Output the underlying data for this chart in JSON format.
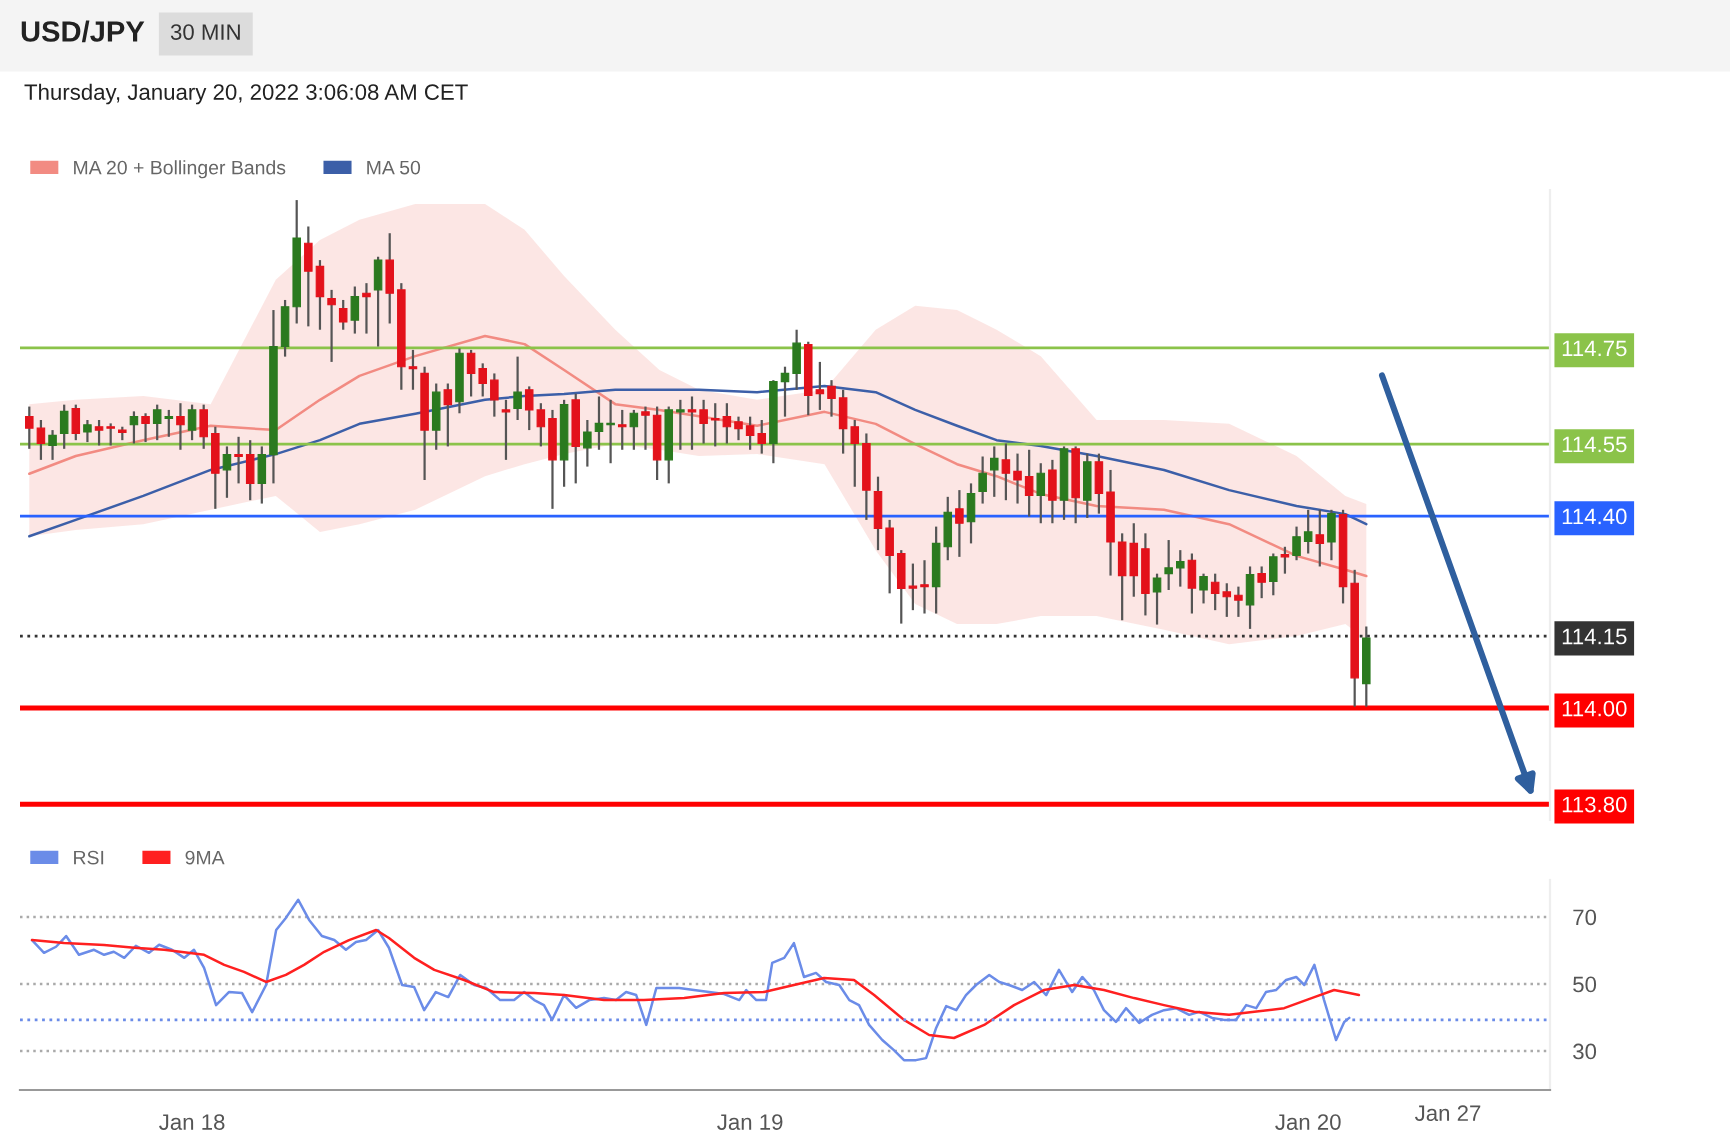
{
  "chart_data": [
    {
      "type": "candlestick",
      "title": "USD/JPY",
      "subtitle": "30 MIN",
      "annotations": [
        "Thursday, January 20, 2022 3:06:08 AM CET"
      ],
      "x": [
        "2022-01-17T17:00",
        "2022-01-17T17:30",
        "2022-01-17T18:00",
        "2022-01-17T18:30",
        "2022-01-17T19:00",
        "2022-01-17T19:30",
        "2022-01-17T20:00",
        "2022-01-17T20:30",
        "2022-01-17T21:00",
        "2022-01-17T21:30",
        "2022-01-17T22:00",
        "2022-01-17T22:30",
        "2022-01-17T23:00",
        "2022-01-17T23:30",
        "2022-01-18T00:00",
        "2022-01-18T00:30",
        "2022-01-18T01:00",
        "2022-01-18T01:30",
        "2022-01-18T02:00",
        "2022-01-18T02:30",
        "2022-01-18T03:00",
        "2022-01-18T03:30",
        "2022-01-18T04:00",
        "2022-01-18T04:30",
        "2022-01-18T05:00",
        "2022-01-18T05:30",
        "2022-01-18T06:00",
        "2022-01-18T06:30",
        "2022-01-18T07:00",
        "2022-01-18T07:30",
        "2022-01-18T08:00",
        "2022-01-18T08:30",
        "2022-01-18T09:00",
        "2022-01-18T09:30",
        "2022-01-18T10:00",
        "2022-01-18T10:30",
        "2022-01-18T11:00",
        "2022-01-18T11:30",
        "2022-01-18T12:00",
        "2022-01-18T12:30",
        "2022-01-18T13:00",
        "2022-01-18T13:30",
        "2022-01-18T14:00",
        "2022-01-18T14:30",
        "2022-01-18T15:00",
        "2022-01-18T15:30",
        "2022-01-18T16:00",
        "2022-01-18T16:30",
        "2022-01-18T17:00",
        "2022-01-18T17:30",
        "2022-01-18T18:00",
        "2022-01-18T18:30",
        "2022-01-18T19:00",
        "2022-01-18T19:30",
        "2022-01-18T20:00",
        "2022-01-18T20:30",
        "2022-01-18T21:00",
        "2022-01-18T21:30",
        "2022-01-18T22:00",
        "2022-01-18T22:30",
        "2022-01-18T23:00",
        "2022-01-18T23:30",
        "2022-01-19T00:00",
        "2022-01-19T00:30",
        "2022-01-19T01:00",
        "2022-01-19T01:30",
        "2022-01-19T02:00",
        "2022-01-19T02:30",
        "2022-01-19T03:00",
        "2022-01-19T03:30",
        "2022-01-19T04:00",
        "2022-01-19T04:30",
        "2022-01-19T05:00",
        "2022-01-19T05:30",
        "2022-01-19T06:00",
        "2022-01-19T06:30",
        "2022-01-19T07:00",
        "2022-01-19T07:30",
        "2022-01-19T08:00",
        "2022-01-19T08:30",
        "2022-01-19T09:00",
        "2022-01-19T09:30",
        "2022-01-19T10:00",
        "2022-01-19T10:30",
        "2022-01-19T11:00",
        "2022-01-19T11:30",
        "2022-01-19T12:00",
        "2022-01-19T12:30",
        "2022-01-19T13:00",
        "2022-01-19T13:30",
        "2022-01-19T14:00",
        "2022-01-19T14:30",
        "2022-01-19T15:00",
        "2022-01-19T15:30",
        "2022-01-19T16:00",
        "2022-01-19T16:30",
        "2022-01-19T17:00",
        "2022-01-19T17:30",
        "2022-01-19T18:00",
        "2022-01-19T18:30",
        "2022-01-19T19:00",
        "2022-01-19T19:30",
        "2022-01-19T20:00",
        "2022-01-19T20:30",
        "2022-01-19T21:00",
        "2022-01-19T21:30",
        "2022-01-19T22:00",
        "2022-01-19T22:30",
        "2022-01-19T23:00",
        "2022-01-19T23:30",
        "2022-01-20T00:00",
        "2022-01-20T00:30",
        "2022-01-20T01:00",
        "2022-01-20T01:30",
        "2022-01-20T02:00",
        "2022-01-20T02:30"
      ],
      "ohlc": [
        [
          114.607,
          114.628,
          114.54,
          114.583
        ],
        [
          114.583,
          114.6,
          114.517,
          114.551
        ],
        [
          114.547,
          114.579,
          114.517,
          114.568
        ],
        [
          114.572,
          114.632,
          114.54,
          114.618
        ],
        [
          114.624,
          114.632,
          114.558,
          114.572
        ],
        [
          114.575,
          114.6,
          114.554,
          114.59
        ],
        [
          114.586,
          114.6,
          114.547,
          114.579
        ],
        [
          114.586,
          114.593,
          114.547,
          114.583
        ],
        [
          114.579,
          114.586,
          114.558,
          114.574
        ],
        [
          114.59,
          114.618,
          114.551,
          114.607
        ],
        [
          114.607,
          114.614,
          114.554,
          114.593
        ],
        [
          114.593,
          114.632,
          114.558,
          114.621
        ],
        [
          114.603,
          114.621,
          114.565,
          114.607
        ],
        [
          114.607,
          114.635,
          114.538,
          114.59
        ],
        [
          114.579,
          114.632,
          114.558,
          114.621
        ],
        [
          114.621,
          114.632,
          114.54,
          114.565
        ],
        [
          114.572,
          114.586,
          114.415,
          114.489
        ],
        [
          114.496,
          114.545,
          114.438,
          114.528
        ],
        [
          114.528,
          114.565,
          114.468,
          114.524
        ],
        [
          114.528,
          114.558,
          114.433,
          114.468
        ],
        [
          114.468,
          114.545,
          114.426,
          114.528
        ],
        [
          114.528,
          114.829,
          114.468,
          114.753
        ],
        [
          114.753,
          114.85,
          114.732,
          114.836
        ],
        [
          114.836,
          115.058,
          114.801,
          114.979
        ],
        [
          114.968,
          115.003,
          114.795,
          114.91
        ],
        [
          114.92,
          114.933,
          114.788,
          114.857
        ],
        [
          114.853,
          114.871,
          114.721,
          114.84
        ],
        [
          114.832,
          114.85,
          114.788,
          114.804
        ],
        [
          114.808,
          114.878,
          114.78,
          114.857
        ],
        [
          114.864,
          114.885,
          114.78,
          114.857
        ],
        [
          114.871,
          114.94,
          114.753,
          114.933
        ],
        [
          114.933,
          114.989,
          114.801,
          114.864
        ],
        [
          114.871,
          114.885,
          114.663,
          114.711
        ],
        [
          114.711,
          114.746,
          114.663,
          114.707
        ],
        [
          114.697,
          114.711,
          114.475,
          114.579
        ],
        [
          114.579,
          114.676,
          114.538,
          114.658
        ],
        [
          114.663,
          114.676,
          114.545,
          114.632
        ],
        [
          114.638,
          114.749,
          114.614,
          114.739
        ],
        [
          114.739,
          114.746,
          114.649,
          114.697
        ],
        [
          114.707,
          114.718,
          114.649,
          114.676
        ],
        [
          114.683,
          114.697,
          114.607,
          114.642
        ],
        [
          114.621,
          114.642,
          114.517,
          114.617
        ],
        [
          114.624,
          114.732,
          114.6,
          114.658
        ],
        [
          114.663,
          114.67,
          114.579,
          114.621
        ],
        [
          114.621,
          114.635,
          114.545,
          114.586
        ],
        [
          114.603,
          114.621,
          114.415,
          114.517
        ],
        [
          114.517,
          114.642,
          114.461,
          114.632
        ],
        [
          114.642,
          114.655,
          114.468,
          114.545
        ],
        [
          114.542,
          114.6,
          114.503,
          114.575
        ],
        [
          114.576,
          114.649,
          114.538,
          114.593
        ],
        [
          114.59,
          114.642,
          114.51,
          114.593
        ],
        [
          114.59,
          114.621,
          114.538,
          114.586
        ],
        [
          114.586,
          114.621,
          114.538,
          114.614
        ],
        [
          114.617,
          114.628,
          114.538,
          114.61
        ],
        [
          114.61,
          114.628,
          114.475,
          114.517
        ],
        [
          114.517,
          114.628,
          114.468,
          114.621
        ],
        [
          114.617,
          114.642,
          114.538,
          114.621
        ],
        [
          114.621,
          114.649,
          114.538,
          114.617
        ],
        [
          114.621,
          114.642,
          114.551,
          114.593
        ],
        [
          114.603,
          114.635,
          114.545,
          114.6
        ],
        [
          114.607,
          114.635,
          114.551,
          114.586
        ],
        [
          114.596,
          114.607,
          114.558,
          114.582
        ],
        [
          114.588,
          114.607,
          114.538,
          114.568
        ],
        [
          114.572,
          114.6,
          114.53,
          114.551
        ],
        [
          114.551,
          114.683,
          114.51,
          114.68
        ],
        [
          114.68,
          114.711,
          114.607,
          114.697
        ],
        [
          114.697,
          114.788,
          114.663,
          114.76
        ],
        [
          114.757,
          114.763,
          114.61,
          114.651
        ],
        [
          114.663,
          114.721,
          114.621,
          114.655
        ],
        [
          114.67,
          114.683,
          114.607,
          114.645
        ],
        [
          114.646,
          114.663,
          114.53,
          114.582
        ],
        [
          114.586,
          114.6,
          114.461,
          114.551
        ],
        [
          114.551,
          114.572,
          114.392,
          114.454
        ],
        [
          114.451,
          114.482,
          114.329,
          114.374
        ],
        [
          114.375,
          114.392,
          114.239,
          114.318
        ],
        [
          114.322,
          114.329,
          114.176,
          114.249
        ],
        [
          114.254,
          114.301,
          114.204,
          114.25
        ],
        [
          114.257,
          114.308,
          114.197,
          114.253
        ],
        [
          114.253,
          114.378,
          114.197,
          114.343
        ],
        [
          114.336,
          114.44,
          114.308,
          114.408
        ],
        [
          114.415,
          114.454,
          114.315,
          114.385
        ],
        [
          114.388,
          114.468,
          114.343,
          114.447
        ],
        [
          114.451,
          114.524,
          114.426,
          114.489
        ],
        [
          114.496,
          114.545,
          114.44,
          114.52
        ],
        [
          114.517,
          114.551,
          114.433,
          114.489
        ],
        [
          114.493,
          114.53,
          114.426,
          114.475
        ],
        [
          114.482,
          114.538,
          114.399,
          114.443
        ],
        [
          114.443,
          114.51,
          114.385,
          114.489
        ],
        [
          114.496,
          114.517,
          114.385,
          114.433
        ],
        [
          114.433,
          114.545,
          114.392,
          114.54
        ],
        [
          114.54,
          114.545,
          114.385,
          114.438
        ],
        [
          114.433,
          114.53,
          114.396,
          114.513
        ],
        [
          114.513,
          114.53,
          114.405,
          114.447
        ],
        [
          114.45,
          114.496,
          114.276,
          114.346
        ],
        [
          114.346,
          114.364,
          114.183,
          114.276
        ],
        [
          114.343,
          114.385,
          114.232,
          114.276
        ],
        [
          114.332,
          114.364,
          114.193,
          114.239
        ],
        [
          114.242,
          114.28,
          114.174,
          114.271
        ],
        [
          114.28,
          114.35,
          114.246,
          114.292
        ],
        [
          114.292,
          114.329,
          114.253,
          114.305
        ],
        [
          114.308,
          114.322,
          114.197,
          114.25
        ],
        [
          114.246,
          114.28,
          114.218,
          114.274
        ],
        [
          114.262,
          114.28,
          114.204,
          114.239
        ],
        [
          114.242,
          114.26,
          114.19,
          114.232
        ],
        [
          114.235,
          114.253,
          114.19,
          114.225
        ],
        [
          114.215,
          114.295,
          114.165,
          114.278
        ],
        [
          114.28,
          114.295,
          114.229,
          114.262
        ],
        [
          114.264,
          114.322,
          114.235,
          114.315
        ],
        [
          114.32,
          114.336,
          114.28,
          114.315
        ],
        [
          114.318,
          114.378,
          114.308,
          114.357
        ],
        [
          114.347,
          114.413,
          114.322,
          114.367
        ],
        [
          114.361,
          114.413,
          114.295,
          114.343
        ],
        [
          114.346,
          114.413,
          114.308,
          114.405
        ],
        [
          114.403,
          114.413,
          114.218,
          114.253
        ],
        [
          114.26,
          114.288,
          114.003,
          114.063
        ],
        [
          114.051,
          114.17,
          114.003,
          114.146
        ]
      ],
      "series": [
        {
          "name": "MA 20 + Bollinger Bands",
          "type": "line",
          "color": "#f28b82",
          "x": [
            "2022-01-17T17:00",
            "2022-01-17T19:00",
            "2022-01-17T21:54",
            "2022-01-18T00:48",
            "2022-01-18T03:36",
            "2022-01-18T05:30",
            "2022-01-18T07:12",
            "2022-01-18T09:36",
            "2022-01-18T12:36",
            "2022-01-18T14:18",
            "2022-01-18T16:00",
            "2022-01-18T18:12",
            "2022-01-18T20:06",
            "2022-01-18T21:48",
            "2022-01-19T00:18",
            "2022-01-19T03:12",
            "2022-01-19T05:24",
            "2022-01-19T07:06",
            "2022-01-19T08:54",
            "2022-01-19T10:36",
            "2022-01-19T12:30",
            "2022-01-19T14:54",
            "2022-01-19T17:48",
            "2022-01-19T20:36",
            "2022-01-19T23:30",
            "2022-01-20T01:36",
            "2022-01-20T02:30"
          ],
          "values": [
            114.488,
            114.525,
            114.558,
            114.588,
            114.579,
            114.642,
            114.692,
            114.733,
            114.775,
            114.758,
            114.704,
            114.633,
            114.621,
            114.608,
            114.588,
            114.617,
            114.592,
            114.55,
            114.508,
            114.483,
            114.446,
            114.421,
            114.413,
            114.383,
            114.317,
            114.288,
            114.275
          ],
          "lower": [
            114.358,
            114.371,
            114.383,
            114.413,
            114.442,
            114.367,
            114.383,
            114.413,
            114.483,
            114.508,
            114.529,
            114.55,
            114.538,
            114.525,
            114.529,
            114.508,
            114.329,
            114.217,
            114.175,
            114.175,
            114.192,
            114.192,
            114.163,
            114.133,
            114.15,
            114.175,
            114.142
          ],
          "upper": [
            114.633,
            114.642,
            114.65,
            114.633,
            114.892,
            114.975,
            115.017,
            115.05,
            115.05,
            114.996,
            114.9,
            114.788,
            114.704,
            114.663,
            114.642,
            114.663,
            114.788,
            114.838,
            114.829,
            114.788,
            114.733,
            114.6,
            114.6,
            114.592,
            114.525,
            114.442,
            114.425
          ]
        },
        {
          "name": "MA 50",
          "type": "line",
          "color": "#3c5fa8",
          "x": [
            "2022-01-17T17:00",
            "2022-01-17T19:00",
            "2022-01-17T21:54",
            "2022-01-18T00:48",
            "2022-01-18T03:36",
            "2022-01-18T05:30",
            "2022-01-18T07:12",
            "2022-01-18T09:36",
            "2022-01-18T12:36",
            "2022-01-18T14:18",
            "2022-01-18T16:00",
            "2022-01-18T18:12",
            "2022-01-18T20:06",
            "2022-01-18T21:48",
            "2022-01-19T00:18",
            "2022-01-19T03:12",
            "2022-01-19T05:24",
            "2022-01-19T07:06",
            "2022-01-19T08:54",
            "2022-01-19T10:36",
            "2022-01-19T12:30",
            "2022-01-19T14:54",
            "2022-01-19T17:48",
            "2022-01-19T20:36",
            "2022-01-19T23:30",
            "2022-01-20T01:36",
            "2022-01-20T02:30"
          ],
          "values": [
            114.358,
            114.392,
            114.442,
            114.496,
            114.529,
            114.558,
            114.592,
            114.613,
            114.642,
            114.65,
            114.654,
            114.663,
            114.663,
            114.663,
            114.658,
            114.671,
            114.658,
            114.621,
            114.588,
            114.558,
            114.546,
            114.525,
            114.496,
            114.454,
            114.421,
            114.404,
            114.383
          ]
        }
      ],
      "ref_lines": [
        {
          "axis": "y",
          "value": 114.75,
          "color": "#8bc34a",
          "line_style": "solid"
        },
        {
          "axis": "y",
          "value": 114.55,
          "color": "#8bc34a",
          "line_style": "solid"
        },
        {
          "axis": "y",
          "value": 114.4,
          "color": "#2962ff",
          "line_style": "solid"
        },
        {
          "axis": "y",
          "value": 114.15,
          "color": "#333333",
          "line_style": "dotted"
        },
        {
          "axis": "y",
          "value": 114.0,
          "color": "#ff0000",
          "line_style": "solid"
        },
        {
          "axis": "y",
          "value": 113.8,
          "color": "#ff0000",
          "line_style": "solid"
        }
      ],
      "xlim": [
        "2022-01-17T16:36",
        "2022-01-20T10:24"
      ],
      "ylim": [
        113.767,
        115.079
      ],
      "yticks": [
        {
          "value": 113.8,
          "label": "113.80"
        },
        {
          "value": 114,
          "label": "114.00"
        },
        {
          "value": 114.15,
          "label": "114.15"
        },
        {
          "value": 114.4,
          "label": "114.40"
        },
        {
          "value": 114.55,
          "label": "114.55"
        },
        {
          "value": 114.75,
          "label": "114.75"
        }
      ],
      "legend": "top left"
    },
    {
      "type": "line",
      "series": [
        {
          "name": "RSI",
          "color": "#6b8ce8",
          "x": [
            "2022-01-17T17:07",
            "2022-01-17T17:38",
            "2022-01-17T18:09",
            "2022-01-17T18:35",
            "2022-01-17T19:08",
            "2022-01-17T19:47",
            "2022-01-17T20:13",
            "2022-01-17T20:38",
            "2022-01-17T21:05",
            "2022-01-17T21:35",
            "2022-01-17T22:09",
            "2022-01-17T22:35",
            "2022-01-17T23:08",
            "2022-01-17T23:40",
            "2022-01-18T00:05",
            "2022-01-18T00:31",
            "2022-01-18T01:02",
            "2022-01-18T01:35",
            "2022-01-18T02:09",
            "2022-01-18T02:35",
            "2022-01-18T03:11",
            "2022-01-18T03:37",
            "2022-01-18T04:02",
            "2022-01-18T04:34",
            "2022-01-18T05:02",
            "2022-01-18T05:35",
            "2022-01-18T06:07",
            "2022-01-18T06:37",
            "2022-01-18T07:03",
            "2022-01-18T07:29",
            "2022-01-18T08:00",
            "2022-01-18T08:28",
            "2022-01-18T09:02",
            "2022-01-18T09:33",
            "2022-01-18T09:59",
            "2022-01-18T10:29",
            "2022-01-18T11:01",
            "2022-01-18T11:32",
            "2022-01-18T12:08",
            "2022-01-18T12:39",
            "2022-01-18T13:15",
            "2022-01-18T13:51",
            "2022-01-18T14:17",
            "2022-01-18T14:43",
            "2022-01-18T15:08",
            "2022-01-18T15:29",
            "2022-01-18T16:00",
            "2022-01-18T16:31",
            "2022-01-18T17:05",
            "2022-01-18T17:43",
            "2022-01-18T18:14",
            "2022-01-18T18:40",
            "2022-01-18T19:06",
            "2022-01-18T19:32",
            "2022-01-18T19:58",
            "2022-01-18T20:23",
            "2022-01-18T20:57",
            "2022-01-18T21:35",
            "2022-01-18T22:14",
            "2022-01-18T22:53",
            "2022-01-18T23:32",
            "2022-01-18T23:50",
            "2022-01-19T00:16",
            "2022-01-19T00:41",
            "2022-01-19T00:57",
            "2022-01-19T01:28",
            "2022-01-19T01:53",
            "2022-01-19T02:19",
            "2022-01-19T02:50",
            "2022-01-19T03:16",
            "2022-01-19T03:50",
            "2022-01-19T04:16",
            "2022-01-19T04:41",
            "2022-01-19T05:07",
            "2022-01-19T05:41",
            "2022-01-19T06:11",
            "2022-01-19T06:37",
            "2022-01-19T07:08",
            "2022-01-19T07:34",
            "2022-01-19T08:00",
            "2022-01-19T08:26",
            "2022-01-19T08:52",
            "2022-01-19T09:17",
            "2022-01-19T09:43",
            "2022-01-19T10:17",
            "2022-01-19T10:43",
            "2022-01-19T11:08",
            "2022-01-19T11:42",
            "2022-01-19T12:13",
            "2022-01-19T12:44",
            "2022-01-19T13:17",
            "2022-01-19T13:51",
            "2022-01-19T14:17",
            "2022-01-19T14:47",
            "2022-01-19T15:13",
            "2022-01-19T15:44",
            "2022-01-19T16:10",
            "2022-01-19T16:44",
            "2022-01-19T17:17",
            "2022-01-19T17:48",
            "2022-01-19T18:19",
            "2022-01-19T18:53",
            "2022-01-19T19:19",
            "2022-01-19T19:52",
            "2022-01-19T20:23",
            "2022-01-19T20:54",
            "2022-01-19T21:20",
            "2022-01-19T21:46",
            "2022-01-19T22:11",
            "2022-01-19T22:37",
            "2022-01-19T23:03",
            "2022-01-19T23:29",
            "2022-01-19T23:50",
            "2022-01-20T00:16",
            "2022-01-20T00:41",
            "2022-01-20T01:12",
            "2022-01-20T01:33",
            "2022-01-20T01:46"
          ],
          "values": [
            63.1,
            59.3,
            61.1,
            64.3,
            58.7,
            60.2,
            58.7,
            59.6,
            57.8,
            61.4,
            59.3,
            61.7,
            60.2,
            57.8,
            60.2,
            54.8,
            43.7,
            47.6,
            47.3,
            41.6,
            49.7,
            66.1,
            69.7,
            75.1,
            69.1,
            64.3,
            63.1,
            60.2,
            62.5,
            63.1,
            66.1,
            60.8,
            49.7,
            49.1,
            42.2,
            47.6,
            46.1,
            52.7,
            49.7,
            48.8,
            45.2,
            45.2,
            47.6,
            45.2,
            43.7,
            39.3,
            46.7,
            42.9,
            45.2,
            45.8,
            45.2,
            47.6,
            46.7,
            37.8,
            48.8,
            48.8,
            48.8,
            48.2,
            47.6,
            47.0,
            45.2,
            48.2,
            45.2,
            45.2,
            56.3,
            57.8,
            62.2,
            52.1,
            53.3,
            50.6,
            49.7,
            45.2,
            43.7,
            37.8,
            33.3,
            30.3,
            27.3,
            27.3,
            27.9,
            36.9,
            43.4,
            42.2,
            46.7,
            49.7,
            52.7,
            50.6,
            49.7,
            48.2,
            50.6,
            46.7,
            54.2,
            47.6,
            52.1,
            48.2,
            42.2,
            38.7,
            42.8,
            38.4,
            40.8,
            42.2,
            42.8,
            40.8,
            41.7,
            39.9,
            39.3,
            39.3,
            43.7,
            42.8,
            47.6,
            48.2,
            51.2,
            52.1,
            49.7,
            55.7,
            45.2,
            33.3,
            38.7,
            39.9
          ]
        },
        {
          "name": "9MA",
          "color": "#ff2020",
          "x": [
            "2022-01-17T17:07",
            "2022-01-17T18:30",
            "2022-01-17T20:13",
            "2022-01-17T21:31",
            "2022-01-17T22:48",
            "2022-01-18T00:31",
            "2022-01-18T01:23",
            "2022-01-18T02:14",
            "2022-01-18T03:11",
            "2022-01-18T04:02",
            "2022-01-18T04:49",
            "2022-01-18T05:41",
            "2022-01-18T06:45",
            "2022-01-18T07:55",
            "2022-01-18T08:28",
            "2022-01-18T09:33",
            "2022-01-18T10:25",
            "2022-01-18T11:42",
            "2022-01-18T12:59",
            "2022-01-18T14:43",
            "2022-01-18T16:00",
            "2022-01-18T17:43",
            "2022-01-18T19:26",
            "2022-01-18T21:10",
            "2022-01-18T22:53",
            "2022-01-19T00:36",
            "2022-01-19T01:53",
            "2022-01-19T03:11",
            "2022-01-19T04:28",
            "2022-01-19T05:20",
            "2022-01-19T06:37",
            "2022-01-19T07:42",
            "2022-01-19T08:46",
            "2022-01-19T10:04",
            "2022-01-19T11:21",
            "2022-01-19T12:38",
            "2022-01-19T13:56",
            "2022-01-19T15:13",
            "2022-01-19T16:31",
            "2022-01-19T17:48",
            "2022-01-19T19:06",
            "2022-01-19T20:36",
            "2022-01-19T21:41",
            "2022-01-19T22:58",
            "2022-01-20T00:16",
            "2022-01-20T01:07",
            "2022-01-20T01:46",
            "2022-01-20T02:11"
          ],
          "values": [
            63.1,
            62.2,
            61.6,
            60.8,
            60.2,
            58.7,
            55.7,
            53.6,
            50.6,
            52.7,
            55.7,
            59.6,
            63.1,
            66.1,
            63.7,
            57.8,
            54.2,
            51.2,
            47.6,
            47.3,
            46.7,
            45.2,
            45.2,
            45.8,
            47.3,
            47.6,
            49.7,
            51.8,
            51.2,
            46.7,
            39.3,
            34.8,
            33.9,
            37.8,
            43.7,
            48.2,
            49.7,
            48.2,
            45.8,
            43.7,
            41.7,
            40.8,
            41.7,
            42.8,
            46.1,
            48.2,
            47.3,
            46.7
          ]
        }
      ],
      "ref_lines": [
        {
          "axis": "y",
          "value": 39.3,
          "color": "#6b8ce8",
          "line_style": "dotted"
        }
      ],
      "xlim": [
        "2022-01-17T16:36",
        "2022-01-20T10:24"
      ],
      "xticks": [
        {
          "value": "2022-01-18T00:00",
          "label": "Jan 18"
        },
        {
          "value": "2022-01-19T00:00",
          "label": "Jan 19"
        },
        {
          "value": "2022-01-20T00:00",
          "label": "Jan 20"
        }
      ],
      "annotations": [
        "Jan 27"
      ],
      "ylim": [
        18.4,
        81
      ],
      "yticks": [
        30,
        50,
        70
      ],
      "grid": "y",
      "legend": "top left"
    }
  ]
}
